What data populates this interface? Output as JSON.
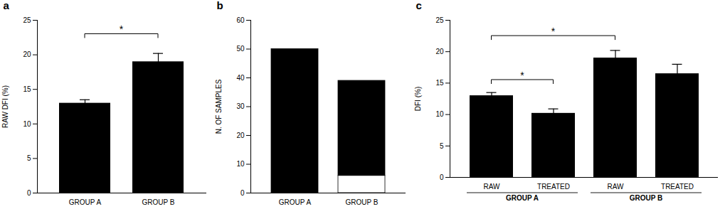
{
  "chart_data": [
    {
      "type": "bar",
      "title": "a",
      "categories": [
        "GROUP A",
        "GROUP B"
      ],
      "values": [
        13.0,
        19.0
      ],
      "errors": [
        0.5,
        1.2
      ],
      "color": "#000000",
      "ylabel": "RAW DFI (%)",
      "ylim": [
        0,
        25
      ],
      "yticks": [
        0,
        5,
        10,
        15,
        20,
        25
      ],
      "annotations": [
        {
          "text": "*",
          "from": 0,
          "to": 1,
          "y": 23.0
        }
      ]
    },
    {
      "type": "bar",
      "title": "b",
      "categories": [
        "GROUP A",
        "GROUP B"
      ],
      "stacked": true,
      "series": [
        {
          "color": "#ffffff",
          "values": [
            0,
            6
          ]
        },
        {
          "color": "#000000",
          "values": [
            50,
            33
          ]
        }
      ],
      "ylabel": "N. OF SAMPLES",
      "ylim": [
        0,
        60
      ],
      "yticks": [
        0,
        10,
        20,
        30,
        40,
        50,
        60
      ]
    },
    {
      "type": "bar",
      "title": "c",
      "categories": [
        "RAW",
        "TREATED",
        "RAW",
        "TREATED"
      ],
      "groups": [
        "GROUP A",
        "GROUP A",
        "GROUP B",
        "GROUP B"
      ],
      "values": [
        13.0,
        10.2,
        19.0,
        16.5
      ],
      "errors": [
        0.5,
        0.7,
        1.2,
        1.5
      ],
      "color": "#000000",
      "ylabel": "DFI (%)",
      "ylim": [
        0,
        25
      ],
      "yticks": [
        0,
        5,
        10,
        15,
        20,
        25
      ],
      "annotations": [
        {
          "text": "*",
          "from": 0,
          "to": 1,
          "y": 15.5
        },
        {
          "text": "*",
          "from": 0,
          "to": 2,
          "y": 22.5
        }
      ]
    }
  ]
}
